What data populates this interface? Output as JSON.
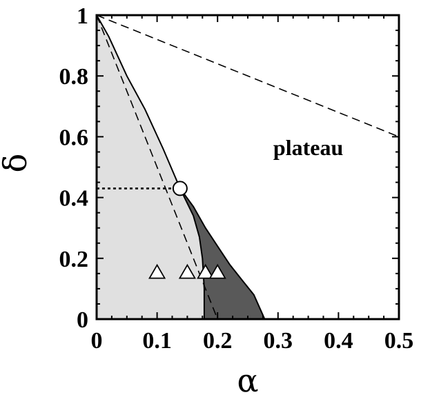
{
  "chart_data": {
    "type": "area",
    "xlabel": "α",
    "ylabel": "δ",
    "xlim": [
      0,
      0.5
    ],
    "ylim": [
      0,
      1
    ],
    "x_ticks": [
      "0",
      "0.1",
      "0.2",
      "0.3",
      "0.4",
      "0.5"
    ],
    "y_ticks": [
      "0",
      "0.2",
      "0.4",
      "0.6",
      "0.8",
      "1"
    ],
    "annotation": "plateau",
    "colors": {
      "light_region": "#e0e0e0",
      "dark_region": "#595959",
      "line": "#000000"
    },
    "light_region_boundary": [
      [
        0,
        1
      ],
      [
        0.02,
        0.93
      ],
      [
        0.05,
        0.8
      ],
      [
        0.08,
        0.69
      ],
      [
        0.11,
        0.56
      ],
      [
        0.138,
        0.43
      ],
      [
        0.16,
        0.34
      ],
      [
        0.17,
        0.27
      ],
      [
        0.175,
        0.2
      ],
      [
        0.178,
        0.1
      ],
      [
        0.178,
        0
      ]
    ],
    "dark_region_upper_boundary": [
      [
        0.138,
        0.43
      ],
      [
        0.16,
        0.37
      ],
      [
        0.18,
        0.3
      ],
      [
        0.2,
        0.24
      ],
      [
        0.22,
        0.18
      ],
      [
        0.24,
        0.13
      ],
      [
        0.26,
        0.08
      ],
      [
        0.278,
        0
      ]
    ],
    "dashed_line_1": [
      [
        0,
        1
      ],
      [
        0.2,
        0
      ]
    ],
    "dashed_line_2": [
      [
        0,
        1
      ],
      [
        0.5,
        0.6
      ]
    ],
    "dotted_segment": [
      [
        0,
        0.43
      ],
      [
        0.138,
        0.43
      ]
    ],
    "circle_point": [
      0.138,
      0.43
    ],
    "triangle_points": [
      [
        0.1,
        0.155
      ],
      [
        0.15,
        0.155
      ],
      [
        0.18,
        0.155
      ],
      [
        0.2,
        0.155
      ]
    ],
    "grid": false
  }
}
